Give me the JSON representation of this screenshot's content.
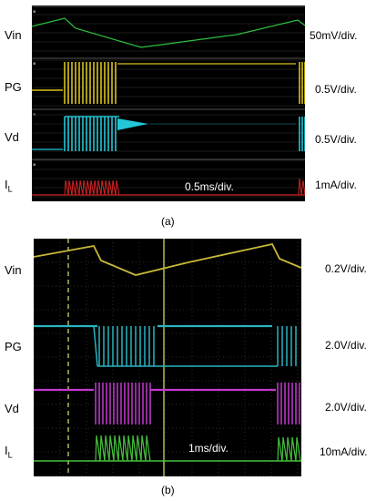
{
  "panel_a": {
    "caption": "(a)",
    "time_scale": "0.5ms/div.",
    "channels": [
      {
        "label": "Vin",
        "scale": "50mV/div.",
        "color": "#2fbf3f"
      },
      {
        "label": "PG",
        "scale": "0.5V/div.",
        "color": "#d8c21c"
      },
      {
        "label": "Vd",
        "scale": "0.5V/div.",
        "color": "#22c6d6"
      },
      {
        "label": "I",
        "label_sub": "L",
        "scale": "1mA/div.",
        "color": "#d42424"
      }
    ]
  },
  "panel_b": {
    "caption": "(b)",
    "time_scale": "1ms/div.",
    "channels": [
      {
        "label": "Vin",
        "scale": "0.2V/div.",
        "color": "#c8b83a"
      },
      {
        "label": "PG",
        "scale": "2.0V/div.",
        "color": "#28b4c0"
      },
      {
        "label": "Vd",
        "scale": "2.0V/div.",
        "color": "#c23ad0"
      },
      {
        "label": "I",
        "label_sub": "L",
        "scale": "10mA/div.",
        "color": "#46c23c"
      }
    ]
  }
}
